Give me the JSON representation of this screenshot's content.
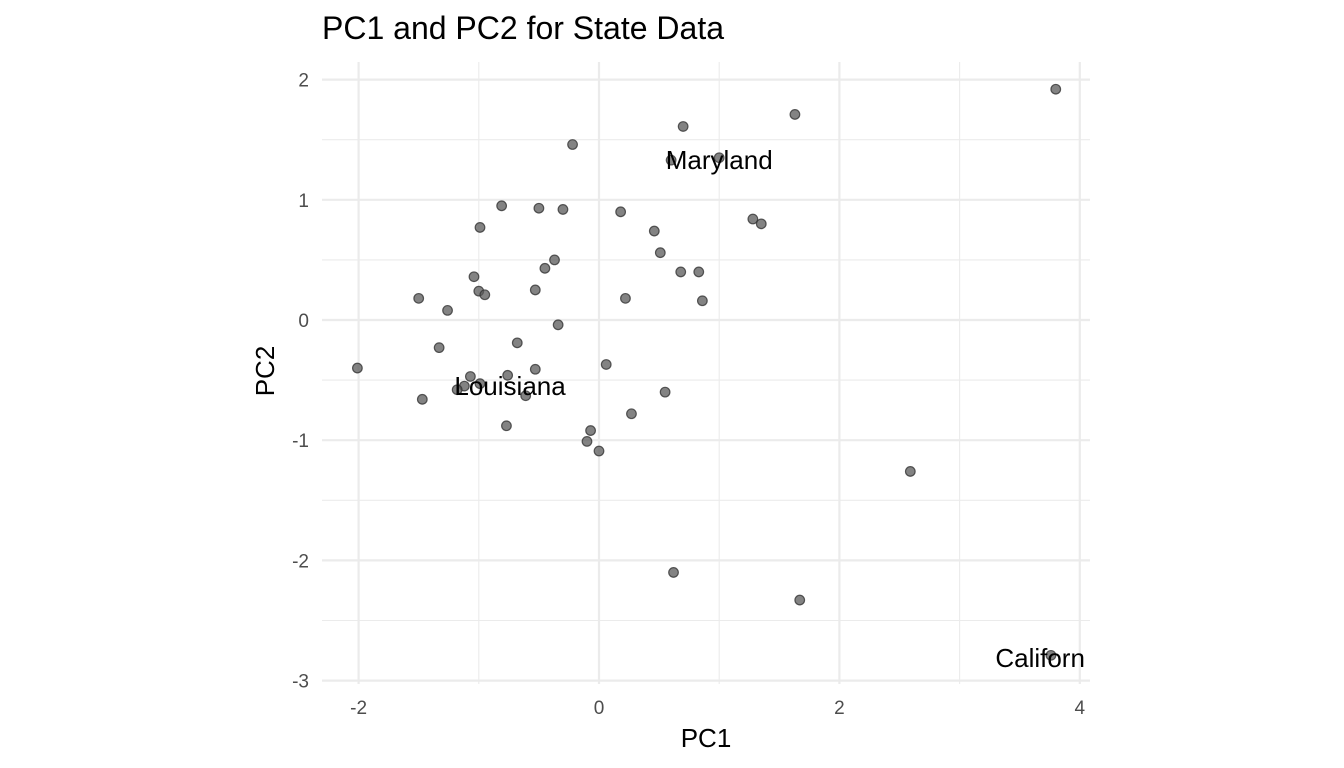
{
  "chart_data": {
    "type": "scatter",
    "title": "PC1 and PC2 for State Data",
    "xlabel": "PC1",
    "ylabel": "PC2",
    "xlim": [
      -2.2,
      4.1
    ],
    "ylim": [
      -3.0,
      2.15
    ],
    "x_ticks": [
      -2,
      0,
      2,
      4
    ],
    "y_ticks": [
      2,
      1,
      0,
      -1,
      -2,
      -3
    ],
    "x_tick_labels": [
      "-2",
      "0",
      "2",
      "4"
    ],
    "y_tick_labels": [
      "2",
      "1",
      "0",
      "-1",
      "-2",
      "-3"
    ],
    "grid": true,
    "point_color": "#595959",
    "points": [
      {
        "x": 3.8,
        "y": 1.92
      },
      {
        "x": 1.63,
        "y": 1.71
      },
      {
        "x": 0.7,
        "y": 1.61
      },
      {
        "x": -0.22,
        "y": 1.46
      },
      {
        "x": 1.0,
        "y": 1.35
      },
      {
        "x": 0.6,
        "y": 1.33
      },
      {
        "x": -0.81,
        "y": 0.95
      },
      {
        "x": -0.5,
        "y": 0.93
      },
      {
        "x": -0.3,
        "y": 0.92
      },
      {
        "x": 0.18,
        "y": 0.9
      },
      {
        "x": 1.28,
        "y": 0.84
      },
      {
        "x": 1.35,
        "y": 0.8
      },
      {
        "x": -0.99,
        "y": 0.77
      },
      {
        "x": 0.46,
        "y": 0.74
      },
      {
        "x": 0.51,
        "y": 0.56
      },
      {
        "x": -0.37,
        "y": 0.5
      },
      {
        "x": -0.45,
        "y": 0.43
      },
      {
        "x": 0.68,
        "y": 0.4
      },
      {
        "x": 0.83,
        "y": 0.4
      },
      {
        "x": -1.04,
        "y": 0.36
      },
      {
        "x": -0.53,
        "y": 0.25
      },
      {
        "x": -1.0,
        "y": 0.24
      },
      {
        "x": -0.95,
        "y": 0.21
      },
      {
        "x": -1.5,
        "y": 0.18
      },
      {
        "x": 0.22,
        "y": 0.18
      },
      {
        "x": 0.86,
        "y": 0.16
      },
      {
        "x": -1.26,
        "y": 0.08
      },
      {
        "x": -0.34,
        "y": -0.04
      },
      {
        "x": -0.68,
        "y": -0.19
      },
      {
        "x": -1.33,
        "y": -0.23
      },
      {
        "x": 0.06,
        "y": -0.37
      },
      {
        "x": -2.01,
        "y": -0.4
      },
      {
        "x": -0.53,
        "y": -0.41
      },
      {
        "x": -0.76,
        "y": -0.46
      },
      {
        "x": -1.07,
        "y": -0.47
      },
      {
        "x": -0.99,
        "y": -0.53
      },
      {
        "x": -1.12,
        "y": -0.55
      },
      {
        "x": -1.18,
        "y": -0.58
      },
      {
        "x": 0.55,
        "y": -0.6
      },
      {
        "x": -0.61,
        "y": -0.63
      },
      {
        "x": -1.47,
        "y": -0.66
      },
      {
        "x": 0.27,
        "y": -0.78
      },
      {
        "x": -0.77,
        "y": -0.88
      },
      {
        "x": -0.07,
        "y": -0.92
      },
      {
        "x": -0.1,
        "y": -1.01
      },
      {
        "x": 0.0,
        "y": -1.09
      },
      {
        "x": 2.59,
        "y": -1.26
      },
      {
        "x": 0.62,
        "y": -2.1
      },
      {
        "x": 1.67,
        "y": -2.33
      },
      {
        "x": 3.76,
        "y": -2.79
      }
    ],
    "annotations": [
      {
        "text": "Maryland",
        "x": 1.0,
        "y": 1.33
      },
      {
        "text": "Louisiana",
        "x": -0.74,
        "y": -0.55
      },
      {
        "text": "Californ",
        "x": 3.67,
        "y": -2.81
      }
    ]
  }
}
